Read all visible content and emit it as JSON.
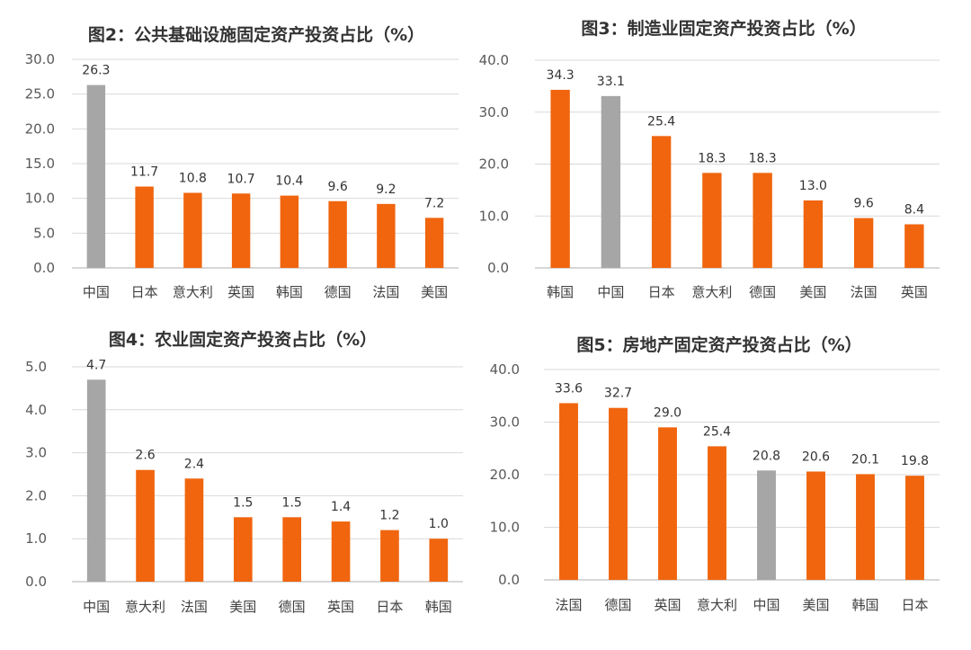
{
  "colors": {
    "highlight": "#a6a6a6",
    "bar": "#f0650e"
  },
  "chart_data": [
    {
      "type": "bar",
      "title": "图2：公共基础设施固定资产投资占比（%）",
      "categories": [
        "中国",
        "日本",
        "意大利",
        "英国",
        "韩国",
        "德国",
        "法国",
        "美国"
      ],
      "values": [
        26.3,
        11.7,
        10.8,
        10.7,
        10.4,
        9.6,
        9.2,
        7.2
      ],
      "highlight": "中国",
      "ylim": [
        0,
        30
      ],
      "yticks": [
        "0.0",
        "5.0",
        "10.0",
        "15.0",
        "20.0",
        "25.0",
        "30.0"
      ],
      "value_labels": [
        "26.3",
        "11.7",
        "10.8",
        "10.7",
        "10.4",
        "9.6",
        "9.2",
        "7.2"
      ]
    },
    {
      "type": "bar",
      "title": "图3：制造业固定资产投资占比（%）",
      "categories": [
        "韩国",
        "中国",
        "日本",
        "意大利",
        "德国",
        "美国",
        "法国",
        "英国"
      ],
      "values": [
        34.3,
        33.1,
        25.4,
        18.3,
        18.3,
        13.0,
        9.6,
        8.4
      ],
      "highlight": "中国",
      "ylim": [
        0,
        40
      ],
      "yticks": [
        "0.0",
        "10.0",
        "20.0",
        "30.0",
        "40.0"
      ],
      "value_labels": [
        "34.3",
        "33.1",
        "25.4",
        "18.3",
        "18.3",
        "13.0",
        "9.6",
        "8.4"
      ]
    },
    {
      "type": "bar",
      "title": "图4：农业固定资产投资占比（%）",
      "categories": [
        "中国",
        "意大利",
        "法国",
        "美国",
        "德国",
        "英国",
        "日本",
        "韩国"
      ],
      "values": [
        4.7,
        2.6,
        2.4,
        1.5,
        1.5,
        1.4,
        1.2,
        1.0
      ],
      "highlight": "中国",
      "ylim": [
        0,
        5
      ],
      "yticks": [
        "0.0",
        "1.0",
        "2.0",
        "3.0",
        "4.0",
        "5.0"
      ],
      "value_labels": [
        "4.7",
        "2.6",
        "2.4",
        "1.5",
        "1.5",
        "1.4",
        "1.2",
        "1.0"
      ]
    },
    {
      "type": "bar",
      "title": "图5：房地产固定资产投资占比（%）",
      "categories": [
        "法国",
        "德国",
        "英国",
        "意大利",
        "中国",
        "美国",
        "韩国",
        "日本"
      ],
      "values": [
        33.6,
        32.7,
        29.0,
        25.4,
        20.8,
        20.6,
        20.1,
        19.8
      ],
      "highlight": "中国",
      "ylim": [
        0,
        40
      ],
      "yticks": [
        "0.0",
        "10.0",
        "20.0",
        "30.0",
        "40.0"
      ],
      "value_labels": [
        "33.6",
        "32.7",
        "29.0",
        "25.4",
        "20.8",
        "20.6",
        "20.1",
        "19.8"
      ]
    }
  ]
}
